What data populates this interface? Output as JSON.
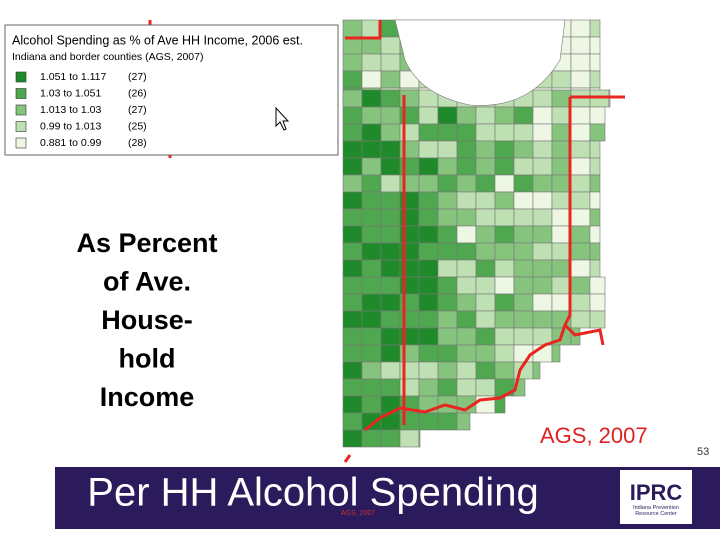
{
  "legend": {
    "title": "Alcohol Spending as % of Ave HH Income, 2006  est.",
    "subtitle": "Indiana and border counties (AGS, 2007)",
    "items": [
      {
        "range": "1.051 to 1.117",
        "count": "(27)",
        "color": "#1f8a2a"
      },
      {
        "range": "1.03   to 1.051",
        "count": "(26)",
        "color": "#4fa84f"
      },
      {
        "range": "1.013 to 1.03",
        "count": "(27)",
        "color": "#86c47e"
      },
      {
        "range": "0.99   to 1.013",
        "count": "(25)",
        "color": "#bfe0b2"
      },
      {
        "range": "0.881 to 0.99",
        "count": "(28)",
        "color": "#eef7e4"
      }
    ]
  },
  "side_text": [
    "As Percent",
    "of Ave.",
    "House-",
    "hold",
    "Income"
  ],
  "source": "AGS, 2007",
  "page_number": "53",
  "footer": {
    "title": "Per HH Alcohol Spending",
    "small_source": "AGS, 2007",
    "logo": "IPRC",
    "logo_caption": "Indiana Prevention Resource Center"
  }
}
